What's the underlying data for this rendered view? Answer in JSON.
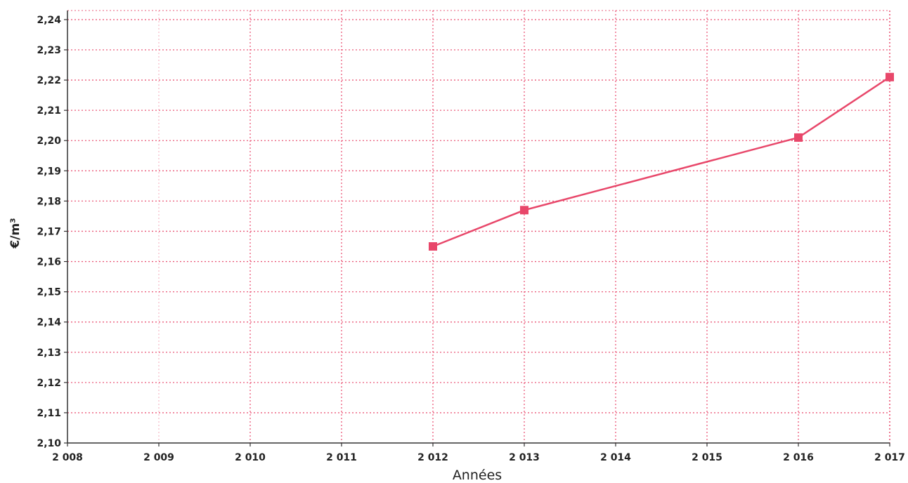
{
  "chart_data": {
    "type": "line",
    "xlabel": "Années",
    "ylabel": "€/m³",
    "x_ticks": [
      "2 008",
      "2 009",
      "2 010",
      "2 011",
      "2 012",
      "2 013",
      "2 014",
      "2 015",
      "2 016",
      "2 017"
    ],
    "y_ticks": [
      "2,24",
      "2,23",
      "2,22",
      "2,21",
      "2,20",
      "2,19",
      "2,18",
      "2,17",
      "2,16",
      "2,15",
      "2,14",
      "2,13",
      "2,12",
      "2,11",
      "2,10"
    ],
    "xlim": [
      2008,
      2017
    ],
    "ylim": [
      2.1,
      2.243
    ],
    "grid": true,
    "series": [
      {
        "x": [
          2012,
          2013,
          2016,
          2017
        ],
        "y": [
          2.165,
          2.177,
          2.201,
          2.221
        ],
        "color": "#e8476a",
        "marker": "square"
      }
    ],
    "colors": {
      "line": "#e8476a",
      "grid": "#e8476a",
      "axis": "#333333"
    }
  }
}
